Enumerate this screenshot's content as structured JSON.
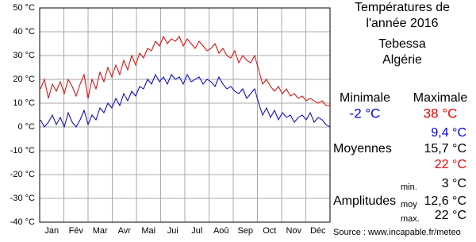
{
  "chart_data": {
    "type": "line",
    "title": "Températures de",
    "subtitle": "l'année 2016",
    "location": "Tebessa",
    "country": "Algérie",
    "categories": [
      "Jan",
      "Fév",
      "Mar",
      "Avr",
      "Mai",
      "Jui",
      "Jul",
      "Aoû",
      "Sep",
      "Oct",
      "Nov",
      "Déc"
    ],
    "x": [
      1,
      6,
      11,
      16,
      21,
      26,
      31,
      36,
      41,
      46,
      51,
      56,
      61,
      66,
      71,
      76,
      81,
      86,
      91,
      96,
      101,
      106,
      111,
      116,
      121,
      126,
      131,
      136,
      141,
      146,
      151,
      156,
      161,
      166,
      171,
      176,
      181,
      186,
      191,
      196,
      201,
      206,
      211,
      216,
      221,
      226,
      231,
      236,
      241,
      246,
      251,
      256,
      261,
      266,
      271,
      276,
      281,
      286,
      291,
      296,
      301,
      306,
      311,
      316,
      321,
      326,
      331,
      336,
      341,
      346,
      351,
      356,
      361,
      366
    ],
    "xlim": [
      0,
      366
    ],
    "ylim": [
      -40,
      50
    ],
    "yticks": [
      {
        "value": -40,
        "label": "-40 °C"
      },
      {
        "value": -30,
        "label": "-30 °C"
      },
      {
        "value": -20,
        "label": "-20 °C"
      },
      {
        "value": -10,
        "label": "-10 °C"
      },
      {
        "value": 0,
        "label": "0 °C"
      },
      {
        "value": 10,
        "label": "10 °C"
      },
      {
        "value": 20,
        "label": "20 °C"
      },
      {
        "value": 30,
        "label": "30 °C"
      },
      {
        "value": 40,
        "label": "40 °C"
      },
      {
        "value": 50,
        "label": "50 °C"
      }
    ],
    "grid": true,
    "series": [
      {
        "name": "Maximale",
        "color": "#dd0000",
        "values": [
          16,
          20,
          12,
          18,
          15,
          19,
          14,
          20,
          17,
          13,
          18,
          22,
          12,
          20,
          16,
          23,
          19,
          25,
          21,
          26,
          22,
          28,
          24,
          30,
          26,
          31,
          29,
          33,
          32,
          36,
          34,
          38,
          35,
          37,
          36,
          38,
          34,
          37,
          35,
          33,
          36,
          34,
          32,
          33,
          35,
          31,
          33,
          30,
          29,
          32,
          27,
          30,
          28,
          27,
          30,
          24,
          18,
          20,
          17,
          15,
          17,
          14,
          16,
          13,
          14,
          12,
          13,
          11,
          12,
          11,
          10,
          11,
          9,
          9
        ]
      },
      {
        "name": "Minimale",
        "color": "#0000cc",
        "values": [
          3,
          0,
          2,
          5,
          1,
          4,
          0,
          6,
          2,
          0,
          3,
          7,
          1,
          5,
          3,
          8,
          6,
          10,
          8,
          12,
          9,
          14,
          11,
          15,
          13,
          17,
          16,
          20,
          18,
          22,
          19,
          21,
          18,
          22,
          20,
          21,
          18,
          22,
          19,
          20,
          21,
          18,
          20,
          19,
          17,
          21,
          18,
          16,
          17,
          15,
          14,
          16,
          12,
          14,
          16,
          10,
          5,
          8,
          4,
          7,
          3,
          6,
          4,
          5,
          2,
          4,
          5,
          3,
          6,
          2,
          4,
          3,
          1,
          0
        ]
      }
    ],
    "extremes": [
      "-2 °C",
      "38 °C"
    ],
    "averages_label": "Moyennes",
    "averages": [
      "9,4 °C",
      "15,7 °C",
      "22 °C"
    ],
    "amplitudes_label": "Amplitudes",
    "amplitudes": [
      {
        "label": "min.",
        "value": "3 °C"
      },
      {
        "label": "moy",
        "value": "12,6 °C"
      },
      {
        "label": "max.",
        "value": "22 °C"
      }
    ],
    "source": "Source : www.incapable.fr/meteo"
  }
}
